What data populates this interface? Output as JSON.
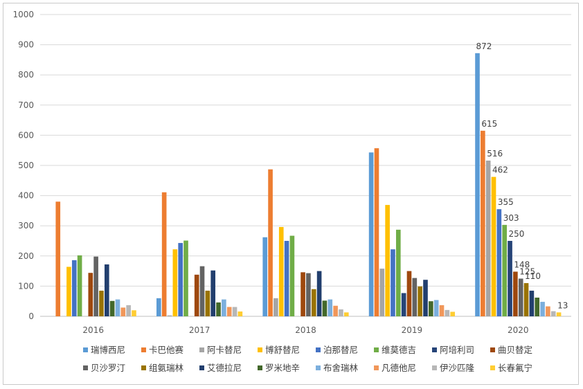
{
  "chart_data": {
    "type": "bar",
    "title": "",
    "xlabel": "",
    "ylabel": "",
    "ylim": [
      0,
      1000
    ],
    "yticks": [
      0,
      100,
      200,
      300,
      400,
      500,
      600,
      700,
      800,
      900,
      1000
    ],
    "categories": [
      "2016",
      "2017",
      "2018",
      "2019",
      "2020"
    ],
    "grid": true,
    "legend_position": "bottom",
    "series": [
      {
        "name": "瑞博西尼",
        "color": "#5b9bd5",
        "values": [
          0,
          60,
          262,
          543,
          872
        ]
      },
      {
        "name": "卡巴他赛",
        "color": "#ed7d31",
        "values": [
          380,
          411,
          487,
          557,
          615
        ]
      },
      {
        "name": "阿卡替尼",
        "color": "#a5a5a5",
        "values": [
          0,
          3,
          60,
          158,
          516
        ]
      },
      {
        "name": "博舒替尼",
        "color": "#ffc000",
        "values": [
          164,
          222,
          296,
          369,
          462
        ]
      },
      {
        "name": "泊那替尼",
        "color": "#4472c4",
        "values": [
          186,
          243,
          250,
          222,
          355
        ]
      },
      {
        "name": "维莫德吉",
        "color": "#70ad47",
        "values": [
          202,
          251,
          267,
          287,
          303
        ]
      },
      {
        "name": "阿培利司",
        "color": "#264478",
        "values": [
          0,
          0,
          0,
          77,
          250
        ]
      },
      {
        "name": "曲贝替定",
        "color": "#9e480e",
        "values": [
          144,
          138,
          146,
          150,
          148
        ]
      },
      {
        "name": "贝沙罗汀",
        "color": "#636363",
        "values": [
          198,
          166,
          143,
          127,
          125
        ]
      },
      {
        "name": "组氨瑞林",
        "color": "#997300",
        "values": [
          85,
          85,
          90,
          99,
          110
        ]
      },
      {
        "name": "艾德拉尼",
        "color": "#223f6e",
        "values": [
          172,
          152,
          150,
          121,
          85
        ]
      },
      {
        "name": "罗米地辛",
        "color": "#43682b",
        "values": [
          51,
          46,
          52,
          50,
          62
        ]
      },
      {
        "name": "布舍瑞林",
        "color": "#7cafdd",
        "values": [
          56,
          56,
          56,
          54,
          48
        ]
      },
      {
        "name": "凡德他尼",
        "color": "#f1975a",
        "values": [
          29,
          31,
          35,
          37,
          33
        ]
      },
      {
        "name": "伊沙匹隆",
        "color": "#b7b7b7",
        "values": [
          37,
          31,
          23,
          21,
          17
        ]
      },
      {
        "name": "长春氟宁",
        "color": "#ffcd33",
        "values": [
          20,
          16,
          13,
          15,
          13
        ]
      }
    ],
    "data_labels": [
      {
        "series": "瑞博西尼",
        "category": "2020",
        "value": "872"
      },
      {
        "series": "卡巴他赛",
        "category": "2020",
        "value": "615"
      },
      {
        "series": "阿卡替尼",
        "category": "2020",
        "value": "516"
      },
      {
        "series": "博舒替尼",
        "category": "2020",
        "value": "462"
      },
      {
        "series": "泊那替尼",
        "category": "2020",
        "value": "355"
      },
      {
        "series": "维莫德吉",
        "category": "2020",
        "value": "303"
      },
      {
        "series": "阿培利司",
        "category": "2020",
        "value": "250"
      },
      {
        "series": "曲贝替定",
        "category": "2020",
        "value": "148"
      },
      {
        "series": "贝沙罗汀",
        "category": "2020",
        "value": "125"
      },
      {
        "series": "组氨瑞林",
        "category": "2020",
        "value": "110"
      },
      {
        "series": "长春氟宁",
        "category": "2020",
        "value": "13"
      }
    ]
  }
}
